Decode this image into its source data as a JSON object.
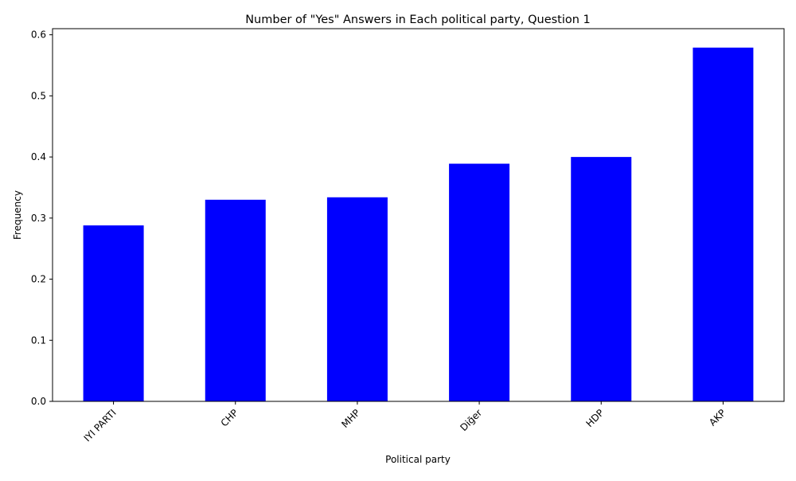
{
  "chart_data": {
    "type": "bar",
    "title": "Number of \"Yes\" Answers in Each political party, Question 1",
    "xlabel": "Political party",
    "ylabel": "Frequency",
    "categories": [
      "IYI PARTI",
      "CHP",
      "MHP",
      "Diğer",
      "HDP",
      "AKP"
    ],
    "values": [
      0.288,
      0.33,
      0.334,
      0.389,
      0.4,
      0.579
    ],
    "ylim": [
      0,
      0.61
    ],
    "yticks": [
      "0.0",
      "0.1",
      "0.2",
      "0.3",
      "0.4",
      "0.5",
      "0.6"
    ],
    "bar_color": "#0000ff",
    "grid": false,
    "legend": "none"
  }
}
